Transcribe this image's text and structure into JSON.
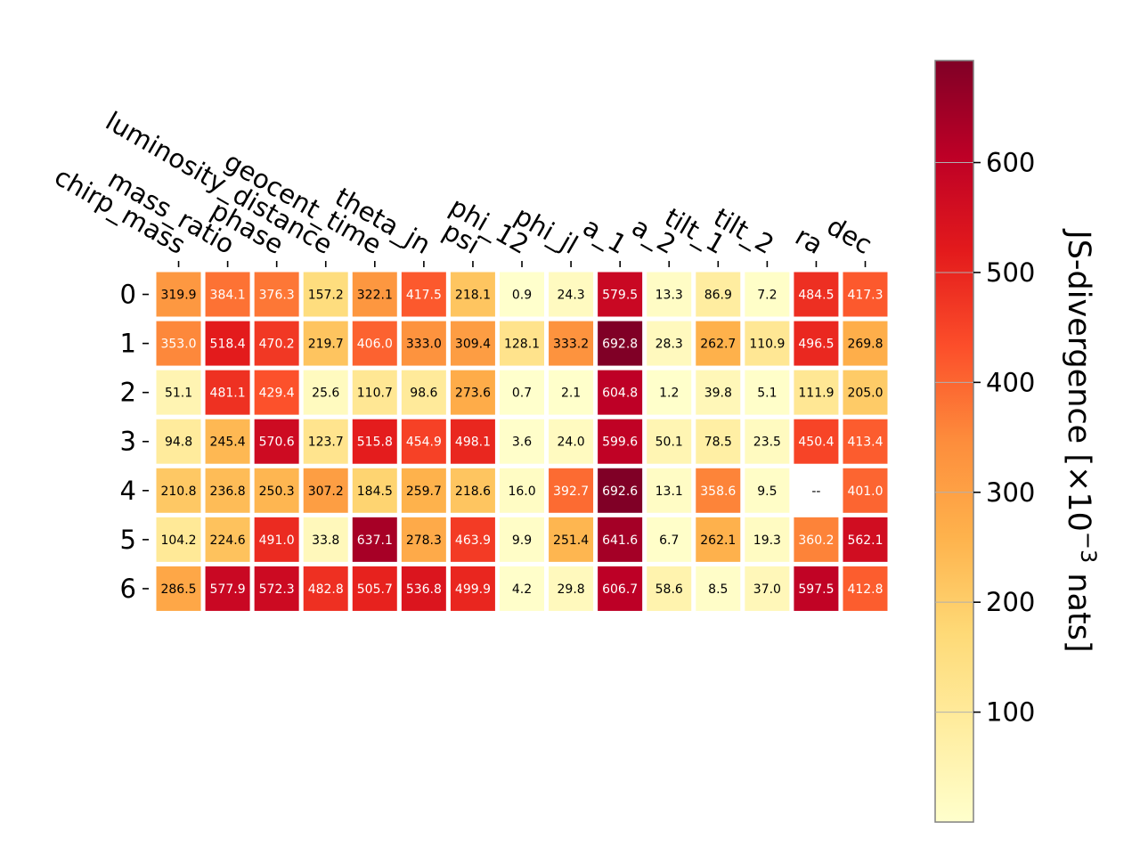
{
  "chart_data": {
    "type": "heatmap",
    "columns": [
      "chirp_mass",
      "mass_ratio",
      "phase",
      "luminosity_distance",
      "geocent_time",
      "theta_jn",
      "psi",
      "phi_12",
      "phi_jl",
      "a_1",
      "a_2",
      "tilt_1",
      "tilt_2",
      "ra",
      "dec"
    ],
    "rows": [
      "0",
      "1",
      "2",
      "3",
      "4",
      "5",
      "6"
    ],
    "values": [
      [
        319.9,
        384.1,
        376.3,
        157.2,
        322.1,
        417.5,
        218.1,
        0.9,
        24.3,
        579.5,
        13.3,
        86.9,
        7.2,
        484.5,
        417.3
      ],
      [
        353.0,
        518.4,
        470.2,
        219.7,
        406.0,
        333.0,
        309.4,
        128.1,
        333.2,
        692.8,
        28.3,
        262.7,
        110.9,
        496.5,
        269.8
      ],
      [
        51.1,
        481.1,
        429.4,
        25.6,
        110.7,
        98.6,
        273.6,
        0.7,
        2.1,
        604.8,
        1.2,
        39.8,
        5.1,
        111.9,
        205.0
      ],
      [
        94.8,
        245.4,
        570.6,
        123.7,
        515.8,
        454.9,
        498.1,
        3.6,
        24.0,
        599.6,
        50.1,
        78.5,
        23.5,
        450.4,
        413.4
      ],
      [
        210.8,
        236.8,
        250.3,
        307.2,
        184.5,
        259.7,
        218.6,
        16.0,
        392.7,
        692.6,
        13.1,
        358.6,
        9.5,
        null,
        401.0
      ],
      [
        104.2,
        224.6,
        491.0,
        33.8,
        637.1,
        278.3,
        463.9,
        9.9,
        251.4,
        641.6,
        6.7,
        262.1,
        19.3,
        360.2,
        562.1
      ],
      [
        286.5,
        577.9,
        572.3,
        482.8,
        505.7,
        536.8,
        499.9,
        4.2,
        29.8,
        606.7,
        58.6,
        8.5,
        37.0,
        597.5,
        412.8
      ]
    ],
    "missing_label": "--",
    "colorbar": {
      "title": "JS-divergence [×10",
      "title_exponent": "−3",
      "title_suffix": " nats]",
      "range": [
        0,
        692.8
      ],
      "ticks": [
        100,
        200,
        300,
        400,
        500,
        600
      ],
      "colormap": "YlOrRd",
      "colormap_colors": [
        "#ffffcc",
        "#ffeda0",
        "#fed976",
        "#feb24c",
        "#fd8d3c",
        "#fc4e2a",
        "#e31a1c",
        "#bd0026",
        "#800026"
      ]
    },
    "grid": false
  }
}
